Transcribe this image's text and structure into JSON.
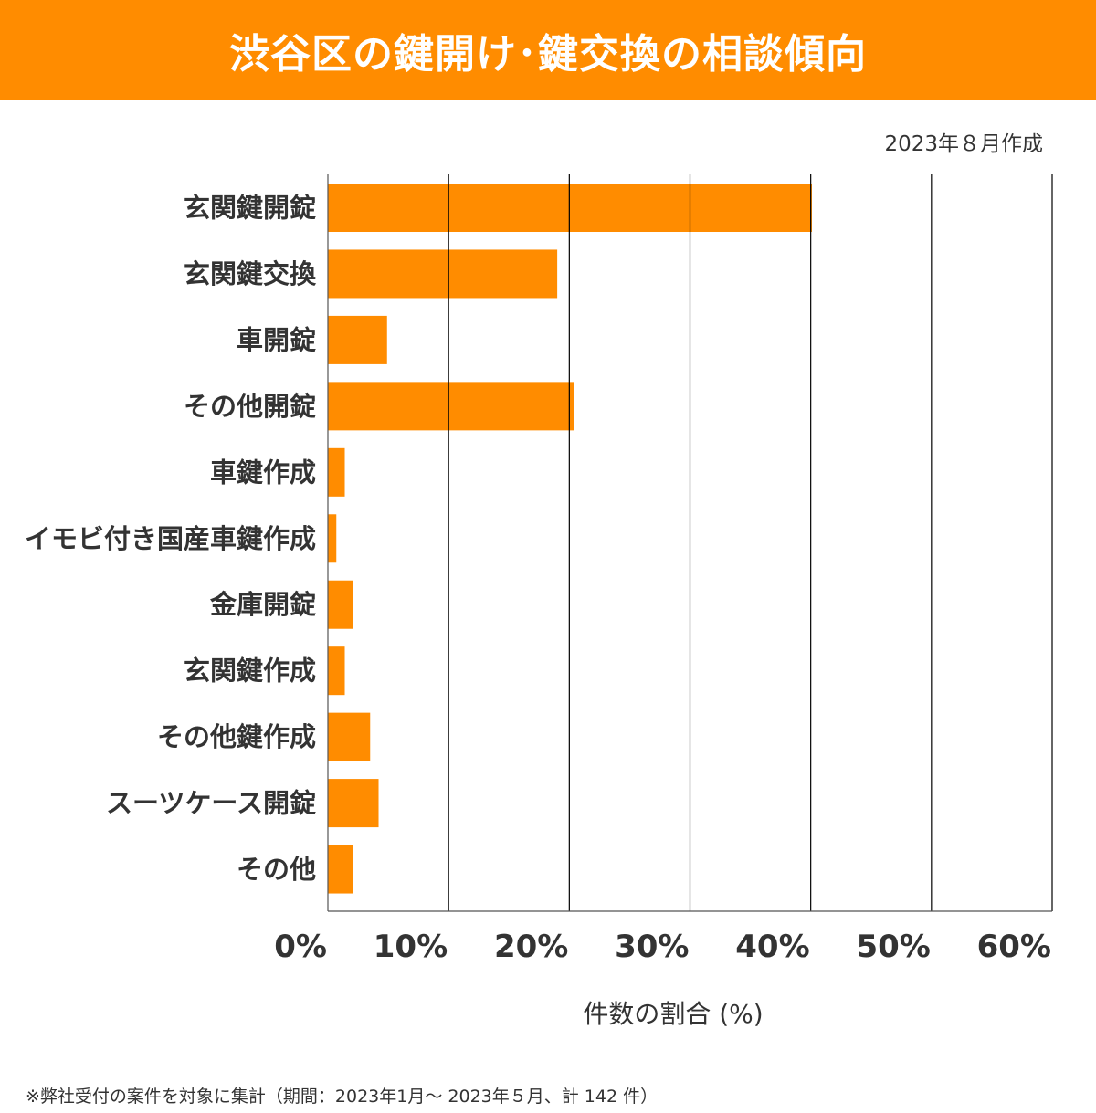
{
  "title": "渋谷区の鍵開け･鍵交換の相談傾向",
  "created": "2023年８月作成",
  "footnote": "※弊社受付の案件を対象に集計（期間：2023年1月～ 2023年５月、計 142 件）",
  "colors": {
    "bar": "#FF8C00",
    "header": "#FF8C00",
    "grid": "#000000"
  },
  "chart_data": {
    "type": "bar",
    "orientation": "horizontal",
    "title": "渋谷区の鍵開け･鍵交換の相談傾向",
    "xlabel": "件数の割合 (%)",
    "ylabel": "",
    "categories": [
      "玄関鍵開錠",
      "玄関鍵交換",
      "車開錠",
      "その他開錠",
      "車鍵作成",
      "イモビ付き国産車鍵作成",
      "金庫開錠",
      "玄関鍵作成",
      "その他鍵作成",
      "スーツケース開錠",
      "その他"
    ],
    "values": [
      40.1,
      19.0,
      4.9,
      20.4,
      1.4,
      0.7,
      2.1,
      1.4,
      3.5,
      4.2,
      2.1
    ],
    "xlim": [
      0,
      60
    ],
    "xticks": [
      0,
      10,
      20,
      30,
      40,
      50,
      60
    ],
    "xtick_labels": [
      "0%",
      "10%",
      "20%",
      "30%",
      "40%",
      "50%",
      "60%"
    ],
    "grid": "vertical",
    "legend": "none"
  }
}
